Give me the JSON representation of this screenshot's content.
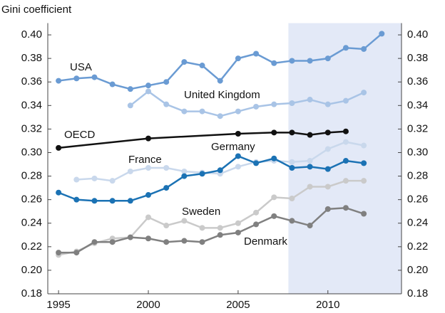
{
  "chart_data": {
    "type": "line",
    "ylabel": "Gini coefficient",
    "xlim": [
      1994.4,
      2014.1
    ],
    "xticks": [
      1995,
      2000,
      2005,
      2010
    ],
    "ylim": [
      0.18,
      0.41
    ],
    "yticks": [
      {
        "value": 0.18,
        "label": "0.18"
      },
      {
        "value": 0.2,
        "label": "0.20"
      },
      {
        "value": 0.22,
        "label": "0.22"
      },
      {
        "value": 0.24,
        "label": "0.24"
      },
      {
        "value": 0.26,
        "label": "0.26"
      },
      {
        "value": 0.28,
        "label": "0.28"
      },
      {
        "value": 0.3,
        "label": "0.30"
      },
      {
        "value": 0.32,
        "label": "0.32"
      },
      {
        "value": 0.34,
        "label": "0.34"
      },
      {
        "value": 0.36,
        "label": "0.36"
      },
      {
        "value": 0.38,
        "label": "0.38"
      },
      {
        "value": 0.4,
        "label": "0.40"
      }
    ],
    "highlight_start": 2007.8,
    "highlight_color": "#e3e9f7",
    "series": [
      {
        "name": "USA",
        "color": "#6a9bd3",
        "x": [
          1995,
          1996,
          1997,
          1998,
          1999,
          2000,
          2001,
          2002,
          2003,
          2004,
          2005,
          2006,
          2007,
          2008,
          2009,
          2010,
          2011,
          2012,
          2013
        ],
        "values": [
          0.361,
          0.363,
          0.364,
          0.358,
          0.354,
          0.357,
          0.36,
          0.377,
          0.374,
          0.361,
          0.38,
          0.384,
          0.376,
          0.378,
          0.378,
          0.38,
          0.389,
          0.388,
          0.401
        ]
      },
      {
        "name": "United Kingdom",
        "color": "#a9c4e6",
        "x": [
          1999,
          2000,
          2001,
          2002,
          2003,
          2004,
          2005,
          2006,
          2007,
          2008,
          2009,
          2010,
          2011,
          2012
        ],
        "values": [
          0.34,
          0.352,
          0.341,
          0.335,
          0.335,
          0.331,
          0.335,
          0.339,
          0.341,
          0.342,
          0.345,
          0.341,
          0.344,
          0.351
        ]
      },
      {
        "name": "OECD",
        "color": "#111111",
        "x": [
          1995,
          2000,
          2005,
          2007,
          2008,
          2009,
          2010,
          2011
        ],
        "values": [
          0.304,
          0.312,
          0.316,
          0.317,
          0.317,
          0.315,
          0.317,
          0.318
        ]
      },
      {
        "name": "France",
        "color": "#c9d8ec",
        "x": [
          1996,
          1997,
          1998,
          1999,
          2000,
          2001,
          2002,
          2003,
          2004,
          2005,
          2006,
          2007,
          2008,
          2009,
          2010,
          2011,
          2012
        ],
        "values": [
          0.277,
          0.278,
          0.276,
          0.284,
          0.287,
          0.287,
          0.284,
          0.283,
          0.282,
          0.288,
          0.292,
          0.293,
          0.292,
          0.293,
          0.303,
          0.309,
          0.306
        ]
      },
      {
        "name": "Germany",
        "color": "#1b72b4",
        "x": [
          1995,
          1996,
          1997,
          1998,
          1999,
          2000,
          2001,
          2002,
          2003,
          2004,
          2005,
          2006,
          2007,
          2008,
          2009,
          2010,
          2011,
          2012
        ],
        "values": [
          0.266,
          0.26,
          0.259,
          0.259,
          0.259,
          0.264,
          0.27,
          0.28,
          0.282,
          0.285,
          0.297,
          0.291,
          0.295,
          0.287,
          0.288,
          0.286,
          0.293,
          0.291
        ]
      },
      {
        "name": "Sweden",
        "color": "#cacaca",
        "x": [
          1995,
          1996,
          1997,
          1998,
          1999,
          2000,
          2001,
          2002,
          2003,
          2004,
          2005,
          2006,
          2007,
          2008,
          2009,
          2010,
          2011,
          2012
        ],
        "values": [
          0.213,
          0.216,
          0.223,
          0.227,
          0.228,
          0.245,
          0.238,
          0.242,
          0.236,
          0.236,
          0.24,
          0.249,
          0.262,
          0.261,
          0.271,
          0.271,
          0.276,
          0.276
        ]
      },
      {
        "name": "Denmark",
        "color": "#808080",
        "x": [
          1995,
          1996,
          1997,
          1998,
          1999,
          2000,
          2001,
          2002,
          2003,
          2004,
          2005,
          2006,
          2007,
          2008,
          2009,
          2010,
          2011,
          2012
        ],
        "values": [
          0.215,
          0.215,
          0.224,
          0.224,
          0.228,
          0.227,
          0.224,
          0.225,
          0.224,
          0.23,
          0.232,
          0.239,
          0.246,
          0.242,
          0.238,
          0.252,
          0.253,
          0.248
        ]
      }
    ]
  }
}
